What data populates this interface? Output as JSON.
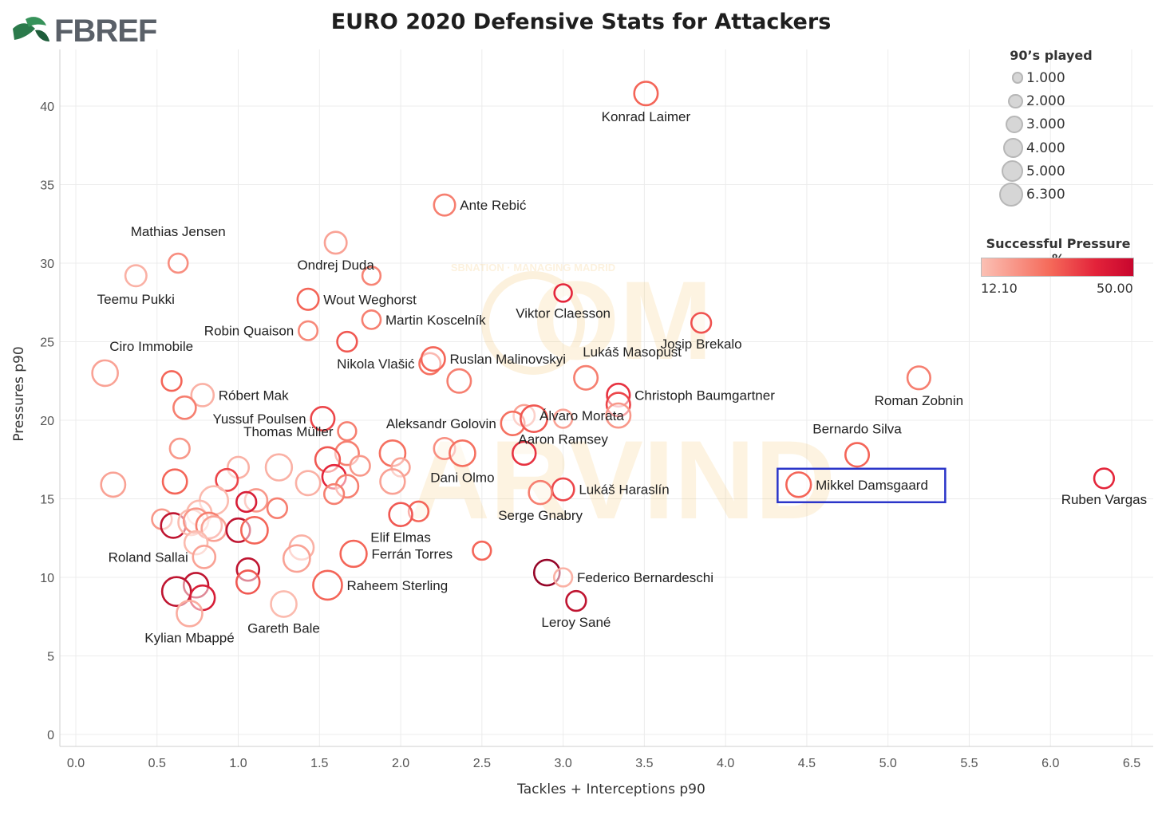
{
  "brand": {
    "logo_text": "FBREF"
  },
  "chart_data": {
    "type": "scatter",
    "title": "EURO 2020 Defensive Stats for Attackers",
    "xlabel": "Tackles + Interceptions p90",
    "ylabel": "Pressures p90",
    "xlim": [
      -0.1,
      6.6
    ],
    "ylim": [
      -0.6,
      42.5
    ],
    "xticks": [
      "0.0",
      "0.5",
      "1.0",
      "1.5",
      "2.0",
      "2.5",
      "3.0",
      "3.5",
      "4.0",
      "4.5",
      "5.0",
      "5.5",
      "6.0",
      "6.5"
    ],
    "yticks": [
      "0",
      "5",
      "10",
      "15",
      "20",
      "25",
      "30",
      "35",
      "40"
    ],
    "grid": true,
    "size_legend": {
      "title": "90’s played",
      "entries": [
        {
          "value": 1.0,
          "label": "1.000"
        },
        {
          "value": 2.0,
          "label": "2.000"
        },
        {
          "value": 3.0,
          "label": "3.000"
        },
        {
          "value": 4.0,
          "label": "4.000"
        },
        {
          "value": 5.0,
          "label": "5.000"
        },
        {
          "value": 6.3,
          "label": "6.300"
        }
      ]
    },
    "color_legend": {
      "title": "Successful Pressure %",
      "min_label": "12.10",
      "max_label": "50.00",
      "min_color": "#fbc0b4",
      "max_color": "#c8062e"
    },
    "highlight": "Mikkel Damsgaard",
    "highlight_color": "#2b35c9",
    "points": [
      {
        "name": "Konrad Laimer",
        "x": 3.51,
        "y": 40.8,
        "size": 3.5,
        "pct": 30,
        "label_side": "below"
      },
      {
        "name": "Ante Rebić",
        "x": 2.27,
        "y": 33.7,
        "size": 2.5,
        "pct": 25,
        "label_side": "right"
      },
      {
        "name": "Mathias Jensen",
        "x": 0.63,
        "y": 30.0,
        "size": 1.8,
        "pct": 22,
        "label_side": "above-left"
      },
      {
        "name": "Teemu Pukki",
        "x": 0.37,
        "y": 29.2,
        "size": 2.5,
        "pct": 15,
        "label_side": "below-left"
      },
      {
        "name": "Ondrej Duda",
        "x": 1.6,
        "y": 31.3,
        "size": 2.8,
        "pct": 18,
        "label_side": "below"
      },
      {
        "name": "",
        "x": 1.82,
        "y": 29.2,
        "size": 1.5,
        "pct": 24,
        "label_side": "none"
      },
      {
        "name": "Viktor Claesson",
        "x": 3.0,
        "y": 28.1,
        "size": 1.3,
        "pct": 40,
        "label_side": "below"
      },
      {
        "name": "Wout Weghorst",
        "x": 1.43,
        "y": 27.7,
        "size": 2.5,
        "pct": 30,
        "label_side": "right"
      },
      {
        "name": "Martin Koscelník",
        "x": 1.82,
        "y": 26.4,
        "size": 1.6,
        "pct": 25,
        "label_side": "right"
      },
      {
        "name": "Robin Quaison",
        "x": 1.43,
        "y": 25.7,
        "size": 1.7,
        "pct": 23,
        "label_side": "left"
      },
      {
        "name": "Josip Brekalo",
        "x": 3.85,
        "y": 26.2,
        "size": 2.0,
        "pct": 33,
        "label_side": "below"
      },
      {
        "name": "",
        "x": 1.67,
        "y": 25.0,
        "size": 2.0,
        "pct": 32,
        "label_side": "none"
      },
      {
        "name": "Ciro Immobile",
        "x": 0.18,
        "y": 23.0,
        "size": 4.5,
        "pct": 18,
        "label_side": "above-right"
      },
      {
        "name": "Nikola Vlašić",
        "x": 2.18,
        "y": 23.6,
        "size": 2.5,
        "pct": 28,
        "label_side": "left"
      },
      {
        "name": "Ruslan Malinovskyi",
        "x": 2.2,
        "y": 23.9,
        "size": 3.5,
        "pct": 30,
        "label_side": "right"
      },
      {
        "name": "Lukáš Masopust",
        "x": 3.14,
        "y": 22.7,
        "size": 3.5,
        "pct": 25,
        "label_side": "above-right"
      },
      {
        "name": "",
        "x": 0.59,
        "y": 22.5,
        "size": 2.0,
        "pct": 30,
        "label_side": "none"
      },
      {
        "name": "",
        "x": 2.36,
        "y": 22.5,
        "size": 3.5,
        "pct": 25,
        "label_side": "none"
      },
      {
        "name": "Roman Zobnin",
        "x": 5.19,
        "y": 22.7,
        "size": 3.2,
        "pct": 25,
        "label_side": "below"
      },
      {
        "name": "Róbert Mak",
        "x": 0.78,
        "y": 21.6,
        "size": 3.0,
        "pct": 15,
        "label_side": "right"
      },
      {
        "name": "Christoph Baumgartner",
        "x": 3.34,
        "y": 21.6,
        "size": 3.2,
        "pct": 38,
        "label_side": "right"
      },
      {
        "name": "",
        "x": 3.34,
        "y": 21.0,
        "size": 3.5,
        "pct": 35,
        "label_side": "none"
      },
      {
        "name": "",
        "x": 0.67,
        "y": 20.8,
        "size": 3.0,
        "pct": 25,
        "label_side": "none"
      },
      {
        "name": "Álvaro Morata",
        "x": 2.76,
        "y": 20.3,
        "size": 2.5,
        "pct": 18,
        "label_side": "right"
      },
      {
        "name": "",
        "x": 3.34,
        "y": 20.3,
        "size": 3.8,
        "pct": 20,
        "label_side": "none"
      },
      {
        "name": "Yussuf Poulsen",
        "x": 1.52,
        "y": 20.1,
        "size": 3.5,
        "pct": 35,
        "label_side": "left"
      },
      {
        "name": "Aleksandr Golovin",
        "x": 2.69,
        "y": 19.8,
        "size": 3.5,
        "pct": 28,
        "label_side": "left"
      },
      {
        "name": "",
        "x": 2.82,
        "y": 20.1,
        "size": 5.0,
        "pct": 32,
        "label_side": "none"
      },
      {
        "name": "Aaron Ramsey",
        "x": 3.0,
        "y": 20.1,
        "size": 1.5,
        "pct": 18,
        "label_side": "below"
      },
      {
        "name": "Thomas Müller",
        "x": 1.67,
        "y": 19.3,
        "size": 1.5,
        "pct": 25,
        "label_side": "left"
      },
      {
        "name": "Bernardo Silva",
        "x": 4.81,
        "y": 17.8,
        "size": 3.5,
        "pct": 30,
        "label_side": "above"
      },
      {
        "name": "",
        "x": 0.64,
        "y": 18.2,
        "size": 2.0,
        "pct": 20,
        "label_side": "none"
      },
      {
        "name": "",
        "x": 2.27,
        "y": 18.2,
        "size": 2.5,
        "pct": 22,
        "label_side": "none"
      },
      {
        "name": "Dani Olmo",
        "x": 2.38,
        "y": 17.9,
        "size": 4.5,
        "pct": 28,
        "label_side": "below"
      },
      {
        "name": "",
        "x": 1.95,
        "y": 17.9,
        "size": 4.5,
        "pct": 28,
        "label_side": "none"
      },
      {
        "name": "",
        "x": 1.67,
        "y": 17.9,
        "size": 3.5,
        "pct": 25,
        "label_side": "none"
      },
      {
        "name": "",
        "x": 2.76,
        "y": 17.9,
        "size": 3.3,
        "pct": 38,
        "label_side": "none"
      },
      {
        "name": "",
        "x": 1.55,
        "y": 17.5,
        "size": 4.0,
        "pct": 32,
        "label_side": "none"
      },
      {
        "name": "",
        "x": 1.0,
        "y": 17.0,
        "size": 2.5,
        "pct": 15,
        "label_side": "none"
      },
      {
        "name": "",
        "x": 1.25,
        "y": 17.0,
        "size": 4.8,
        "pct": 15,
        "label_side": "none"
      },
      {
        "name": "",
        "x": 1.75,
        "y": 17.1,
        "size": 2.0,
        "pct": 20,
        "label_side": "none"
      },
      {
        "name": "",
        "x": 2.0,
        "y": 17.0,
        "size": 1.5,
        "pct": 18,
        "label_side": "none"
      },
      {
        "name": "",
        "x": 1.59,
        "y": 16.4,
        "size": 3.5,
        "pct": 40,
        "label_side": "none"
      },
      {
        "name": "Mikkel Damsgaard",
        "x": 4.45,
        "y": 15.9,
        "size": 4.0,
        "pct": 30,
        "label_side": "right"
      },
      {
        "name": "Ruben Vargas",
        "x": 6.33,
        "y": 16.3,
        "size": 2.0,
        "pct": 40,
        "label_side": "below"
      },
      {
        "name": "",
        "x": 0.23,
        "y": 15.9,
        "size": 3.8,
        "pct": 18,
        "label_side": "none"
      },
      {
        "name": "",
        "x": 0.61,
        "y": 16.1,
        "size": 3.8,
        "pct": 30,
        "label_side": "none"
      },
      {
        "name": "",
        "x": 0.93,
        "y": 16.2,
        "size": 2.8,
        "pct": 35,
        "label_side": "none"
      },
      {
        "name": "",
        "x": 1.43,
        "y": 16.0,
        "size": 3.8,
        "pct": 15,
        "label_side": "none"
      },
      {
        "name": "",
        "x": 1.67,
        "y": 15.8,
        "size": 3.0,
        "pct": 25,
        "label_side": "none"
      },
      {
        "name": "",
        "x": 1.95,
        "y": 16.1,
        "size": 4.0,
        "pct": 18,
        "label_side": "none"
      },
      {
        "name": "Lukáš Haraslín",
        "x": 3.0,
        "y": 15.6,
        "size": 2.8,
        "pct": 35,
        "label_side": "right"
      },
      {
        "name": "Serge Gnabry",
        "x": 2.86,
        "y": 15.4,
        "size": 3.3,
        "pct": 25,
        "label_side": "below"
      },
      {
        "name": "",
        "x": 1.59,
        "y": 15.3,
        "size": 2.0,
        "pct": 25,
        "label_side": "none"
      },
      {
        "name": "",
        "x": 1.11,
        "y": 14.9,
        "size": 3.0,
        "pct": 20,
        "label_side": "none"
      },
      {
        "name": "",
        "x": 1.05,
        "y": 14.8,
        "size": 2.0,
        "pct": 42,
        "label_side": "none"
      },
      {
        "name": "",
        "x": 0.85,
        "y": 14.9,
        "size": 6.0,
        "pct": 13,
        "label_side": "none"
      },
      {
        "name": "",
        "x": 0.76,
        "y": 14.1,
        "size": 4.0,
        "pct": 13,
        "label_side": "none"
      },
      {
        "name": "",
        "x": 1.24,
        "y": 14.4,
        "size": 2.0,
        "pct": 25,
        "label_side": "none"
      },
      {
        "name": "",
        "x": 2.11,
        "y": 14.2,
        "size": 2.0,
        "pct": 30,
        "label_side": "none"
      },
      {
        "name": "Elif Elmas",
        "x": 2.0,
        "y": 14.0,
        "size": 3.3,
        "pct": 32,
        "label_side": "below"
      },
      {
        "name": "",
        "x": 0.53,
        "y": 13.7,
        "size": 2.0,
        "pct": 20,
        "label_side": "none"
      },
      {
        "name": "",
        "x": 0.6,
        "y": 13.3,
        "size": 4.0,
        "pct": 45,
        "label_side": "none"
      },
      {
        "name": "",
        "x": 0.71,
        "y": 13.5,
        "size": 4.5,
        "pct": 13,
        "label_side": "none"
      },
      {
        "name": "",
        "x": 0.74,
        "y": 13.6,
        "size": 4.0,
        "pct": 20,
        "label_side": "none"
      },
      {
        "name": "",
        "x": 0.82,
        "y": 13.3,
        "size": 4.5,
        "pct": 25,
        "label_side": "none"
      },
      {
        "name": "",
        "x": 0.85,
        "y": 13.1,
        "size": 4.0,
        "pct": 18,
        "label_side": "none"
      },
      {
        "name": "",
        "x": 1.0,
        "y": 13.0,
        "size": 3.5,
        "pct": 45,
        "label_side": "none"
      },
      {
        "name": "",
        "x": 1.1,
        "y": 13.0,
        "size": 5.0,
        "pct": 30,
        "label_side": "none"
      },
      {
        "name": "",
        "x": 0.74,
        "y": 12.2,
        "size": 3.3,
        "pct": 13,
        "label_side": "none"
      },
      {
        "name": "",
        "x": 1.39,
        "y": 11.9,
        "size": 3.8,
        "pct": 15,
        "label_side": "none"
      },
      {
        "name": "Ferrán Torres",
        "x": 1.71,
        "y": 11.5,
        "size": 4.8,
        "pct": 30,
        "label_side": "right"
      },
      {
        "name": "",
        "x": 2.5,
        "y": 11.7,
        "size": 1.5,
        "pct": 30,
        "label_side": "none"
      },
      {
        "name": "Roland Sallai",
        "x": 0.79,
        "y": 11.3,
        "size": 3.0,
        "pct": 18,
        "label_side": "left"
      },
      {
        "name": "",
        "x": 1.36,
        "y": 11.2,
        "size": 5.0,
        "pct": 18,
        "label_side": "none"
      },
      {
        "name": "",
        "x": 1.06,
        "y": 10.5,
        "size": 3.0,
        "pct": 45,
        "label_side": "none"
      },
      {
        "name": "",
        "x": 2.9,
        "y": 10.3,
        "size": 4.5,
        "pct": 50,
        "label_side": "none"
      },
      {
        "name": "Federico Bernardeschi",
        "x": 3.0,
        "y": 10.0,
        "size": 1.5,
        "pct": 15,
        "label_side": "right"
      },
      {
        "name": "",
        "x": 1.06,
        "y": 9.7,
        "size": 3.3,
        "pct": 32,
        "label_side": "none"
      },
      {
        "name": "Raheem Sterling",
        "x": 1.55,
        "y": 9.5,
        "size": 6.3,
        "pct": 30,
        "label_side": "right"
      },
      {
        "name": "",
        "x": 0.74,
        "y": 9.5,
        "size": 4.0,
        "pct": 45,
        "label_side": "none"
      },
      {
        "name": "",
        "x": 0.62,
        "y": 9.1,
        "size": 6.3,
        "pct": 45,
        "label_side": "none"
      },
      {
        "name": "",
        "x": 0.78,
        "y": 8.7,
        "size": 4.0,
        "pct": 42,
        "label_side": "none"
      },
      {
        "name": "Leroy Sané",
        "x": 3.08,
        "y": 8.5,
        "size": 2.0,
        "pct": 45,
        "label_side": "below"
      },
      {
        "name": "Gareth Bale",
        "x": 1.28,
        "y": 8.3,
        "size": 4.5,
        "pct": 13,
        "label_side": "below"
      },
      {
        "name": "Kylian Mbappé",
        "x": 0.7,
        "y": 7.7,
        "size": 4.5,
        "pct": 16,
        "label_side": "below"
      }
    ]
  },
  "watermark": {
    "badge_text": "SBNATION · MANAGING MADRID",
    "word1": "OM",
    "word2": "ARVIND"
  }
}
